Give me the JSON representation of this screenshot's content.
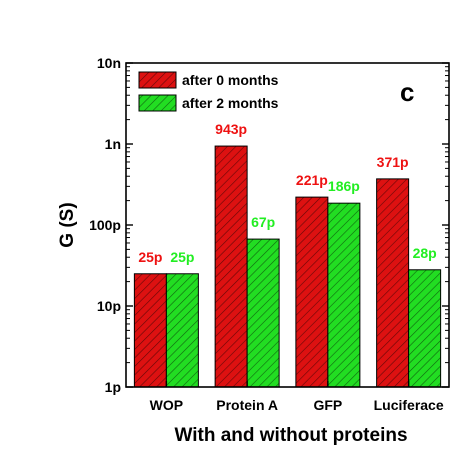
{
  "chart_data": {
    "type": "bar",
    "categories": [
      "WOP",
      "Protein A",
      "GFP",
      "Luciferace"
    ],
    "series": [
      {
        "name": "after 0 months",
        "values": [
          2.5e-11,
          9.43e-10,
          2.21e-10,
          3.71e-10
        ],
        "labels": [
          "25p",
          "943p",
          "221p",
          "371p"
        ],
        "color": "#dd1111",
        "label_color": "#ee1111"
      },
      {
        "name": "after 2 months",
        "values": [
          2.5e-11,
          6.7e-11,
          1.86e-10,
          2.8e-11
        ],
        "labels": [
          "25p",
          "67p",
          "186p",
          "28p"
        ],
        "color": "#22dd22",
        "label_color": "#22ee22"
      }
    ],
    "y_scale": "log",
    "ylim": [
      1e-12,
      1e-08
    ],
    "y_ticks": [
      1e-12,
      1e-11,
      1e-10,
      1e-09,
      1e-08
    ],
    "y_tick_labels": [
      "1p",
      "10p",
      "100p",
      "1n",
      "10n"
    ],
    "xlabel": "With and without proteins",
    "ylabel": "G (S)",
    "panel_label": "c",
    "legend_position": "top-left",
    "bar_pattern": "diagonal-hatch"
  }
}
